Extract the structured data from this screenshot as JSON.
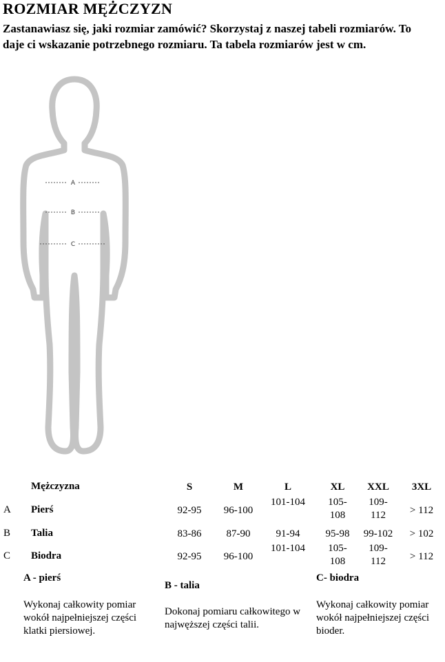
{
  "title": "ROZMIAR MĘŻCZYZN",
  "intro": "Zastanawiasz się, jaki rozmiar zamówić? Skorzystaj z naszej tabeli rozmiarów. To daje ci wskazanie potrzebnego rozmiaru. Ta tabela rozmiarów jest w cm.",
  "figure": {
    "labels": [
      "A",
      "B",
      "C"
    ]
  },
  "table": {
    "header": "Mężczyzna",
    "sizes": [
      "S",
      "M",
      "L",
      "XL",
      "XXL",
      "3XL"
    ],
    "rows": [
      {
        "letter": "A",
        "name": "Pierś",
        "values": [
          "92-95",
          "96-100",
          "101-104",
          "105-108",
          "109-112",
          "> 112"
        ]
      },
      {
        "letter": "B",
        "name": "Talia",
        "values": [
          "83-86",
          "87-90",
          "91-94",
          "95-98",
          "99-102",
          "> 102"
        ]
      },
      {
        "letter": "C",
        "name": "Biodra",
        "values": [
          "92-95",
          "96-100",
          "101-104",
          "105-108",
          "109-112",
          "> 112"
        ]
      }
    ]
  },
  "descriptions": [
    {
      "title": "A - pierś",
      "text": "Wykonaj całkowity pomiar wokół najpełniejszej części klatki piersiowej."
    },
    {
      "title": "B - talia",
      "text": "Dokonaj pomiaru całkowitego w najwęższej części talii."
    },
    {
      "title": "C- biodra",
      "text": "Wykonaj całkowity pomiar wokół najpełniejszej części bioder."
    }
  ]
}
